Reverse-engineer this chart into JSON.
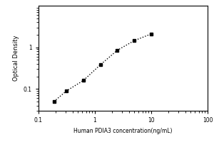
{
  "x": [
    0.188,
    0.313,
    0.625,
    1.25,
    2.5,
    5.0,
    10.0
  ],
  "y": [
    0.05,
    0.09,
    0.16,
    0.38,
    0.85,
    1.45,
    2.1
  ],
  "xlabel": "Human PDIA3 concentration(ng/mL)",
  "ylabel": "Optical Density",
  "xlim": [
    0.1,
    100
  ],
  "ylim": [
    0.03,
    10
  ],
  "marker": "s",
  "marker_color": "black",
  "marker_size": 3.5,
  "line_style": "dotted",
  "line_color": "black",
  "line_width": 1.0,
  "xlabel_fontsize": 5.5,
  "ylabel_fontsize": 6,
  "tick_fontsize": 5.5,
  "background_color": "#ffffff",
  "yticks": [
    0.1,
    1
  ],
  "ytick_labels": [
    "0.1",
    "1"
  ],
  "xticks": [
    0.1,
    1,
    10,
    100
  ],
  "xtick_labels": [
    "0.1",
    "1",
    "10",
    "100"
  ]
}
